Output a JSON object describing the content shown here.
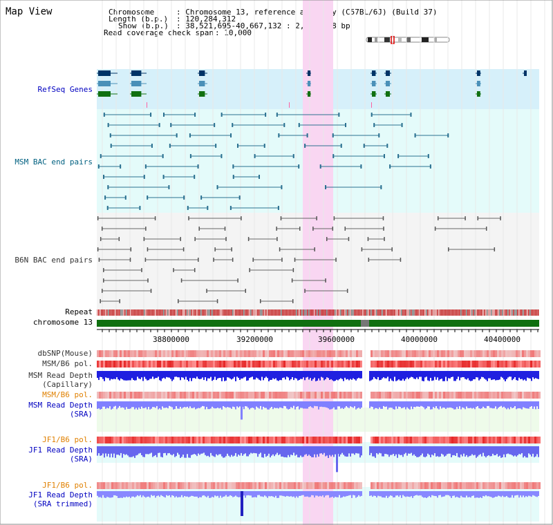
{
  "page": {
    "title": "Map View"
  },
  "header": {
    "chromosome_label": "Chromosome",
    "chromosome_value": ": Chromosome 13, reference assembly (C57BL/6J) (Build 37)",
    "length_label": "Length (b.p.)",
    "length_value": ": 120,284,312",
    "show_label": "Show (b.p.)",
    "show_value": ": 38,521,695-40,667,132 : 2,145,438 bp",
    "coverage_label": "Read coverage check span",
    "coverage_value": ": 10,000"
  },
  "tracks": {
    "refseq": "RefSeq Genes",
    "msm_bac": "MSM BAC end pairs",
    "b6n_bac": "B6N BAC end pairs",
    "repeat": "Repeat",
    "chromosome": "chromosome 13",
    "dbsnp": "dbSNP(Mouse)",
    "msm_b6_pol": "MSM/B6 pol.",
    "msm_read_depth_1": "MSM Read Depth",
    "msm_read_depth_1b": "(Capillary)",
    "msm_b6_pol_2": "MSM/B6 pol.",
    "msm_read_depth_2": "MSM Read Depth",
    "msm_read_depth_2b": "(SRA)",
    "jf1_b6_pol": "JF1/B6 pol.",
    "jf1_read_depth": "JF1 Read Depth",
    "jf1_read_depth_b": "(SRA)",
    "jf1_b6_pol_2": "JF1/B6 pol.",
    "jf1_read_depth_2": "JF1 Read Depth",
    "jf1_read_depth_2b": "(SRA trimmed)"
  },
  "axis": {
    "ticks": [
      "38800000",
      "39200000",
      "39600000",
      "40000000",
      "40400000"
    ]
  },
  "colors": {
    "highlight": "#f9d6f2",
    "refseq_bg": "#d6f0fa",
    "msm_bg": "#e4fbfa",
    "b6n_bg": "#f4f4f4",
    "chromosome": "#107010",
    "label_blue": "#0000c0",
    "label_teal": "#006080",
    "label_orange": "#e08000"
  }
}
